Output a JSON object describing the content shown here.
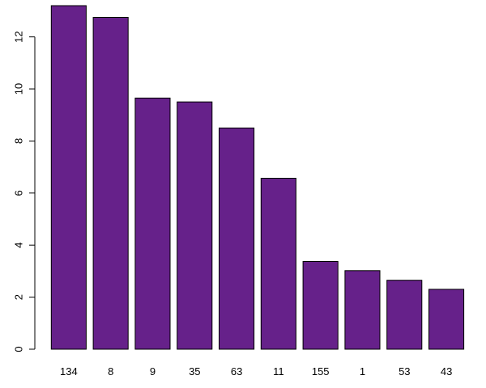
{
  "chart_data": {
    "type": "bar",
    "title": "",
    "xlabel": "",
    "ylabel": "",
    "categories": [
      "134",
      "8",
      "9",
      "35",
      "63",
      "11",
      "155",
      "1",
      "53",
      "43"
    ],
    "values": [
      13.2,
      12.75,
      9.65,
      9.5,
      8.5,
      6.57,
      3.37,
      3.02,
      2.65,
      2.3
    ],
    "ylim": [
      0,
      13.2
    ],
    "yticks": [
      "0",
      "2",
      "4",
      "6",
      "8",
      "10",
      "12"
    ],
    "grid": false,
    "legend": "none",
    "bar_color": "#66218a",
    "bar_border_color": "#000000"
  }
}
